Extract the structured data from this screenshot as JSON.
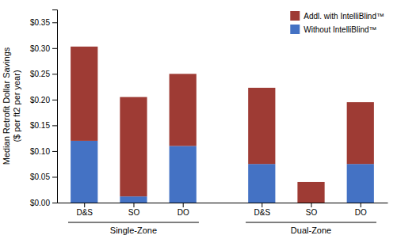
{
  "chart_data": {
    "type": "bar",
    "stacked": true,
    "categories": [
      "D&S",
      "SO",
      "DO",
      "D&S",
      "SO",
      "DO"
    ],
    "group_labels": [
      "Single-Zone",
      "Dual-Zone"
    ],
    "series": [
      {
        "name": "Without IntelliBlind™",
        "color": "#4472C4",
        "values": [
          0.12,
          0.012,
          0.11,
          0.075,
          0.0,
          0.075
        ]
      },
      {
        "name": "Addl. with IntelliBlind™",
        "color": "#9E3B34",
        "values": [
          0.183,
          0.193,
          0.14,
          0.148,
          0.04,
          0.12
        ]
      }
    ],
    "ylabel": "Median Retrofit Dollar Savings\n($ per ft2 per year)",
    "ylim": [
      0,
      0.375
    ],
    "yticks": [
      {
        "value": 0.0,
        "label": "$0.00"
      },
      {
        "value": 0.05,
        "label": "$0.05"
      },
      {
        "value": 0.1,
        "label": "$0.10"
      },
      {
        "value": 0.15,
        "label": "$0.15"
      },
      {
        "value": 0.2,
        "label": "$0.20"
      },
      {
        "value": 0.25,
        "label": "$0.25"
      },
      {
        "value": 0.3,
        "label": "$0.30"
      },
      {
        "value": 0.35,
        "label": "$0.35"
      }
    ],
    "grid": false,
    "legend": "upper right"
  }
}
